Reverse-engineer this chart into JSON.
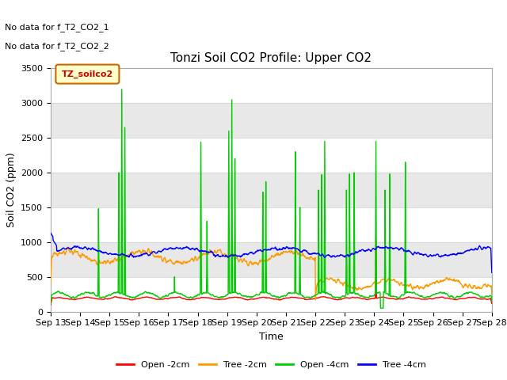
{
  "title": "Tonzi Soil CO2 Profile: Upper CO2",
  "ylabel": "Soil CO2 (ppm)",
  "xlabel": "Time",
  "ylim": [
    0,
    3500
  ],
  "xlim_days": [
    13,
    28
  ],
  "x_tick_labels": [
    "Sep 13",
    "Sep 14",
    "Sep 15",
    "Sep 16",
    "Sep 17",
    "Sep 18",
    "Sep 19",
    "Sep 20",
    "Sep 21",
    "Sep 22",
    "Sep 23",
    "Sep 24",
    "Sep 25",
    "Sep 26",
    "Sep 27",
    "Sep 28"
  ],
  "annotation_lines": [
    "No data for f_T2_CO2_1",
    "No data for f_T2_CO2_2"
  ],
  "legend_box_label": "TZ_soilco2",
  "legend_box_color": "#cc0000",
  "legend_box_border": "#cc6600",
  "legend_box_bg": "#ffffcc",
  "colors": {
    "open_2cm": "#ff0000",
    "tree_2cm": "#ff9900",
    "open_4cm": "#00cc00",
    "tree_4cm": "#0000ff"
  },
  "legend_labels": [
    "Open -2cm",
    "Tree -2cm",
    "Open -4cm",
    "Tree -4cm"
  ],
  "background_color": "#ffffff",
  "plot_bg_color": "#f5f5f5",
  "title_fontsize": 11,
  "axis_fontsize": 9,
  "tick_fontsize": 8,
  "band_colors": [
    "#ffffff",
    "#e8e8e8"
  ],
  "band_boundaries": [
    0,
    500,
    1000,
    1500,
    2000,
    2500,
    3000,
    3500
  ]
}
